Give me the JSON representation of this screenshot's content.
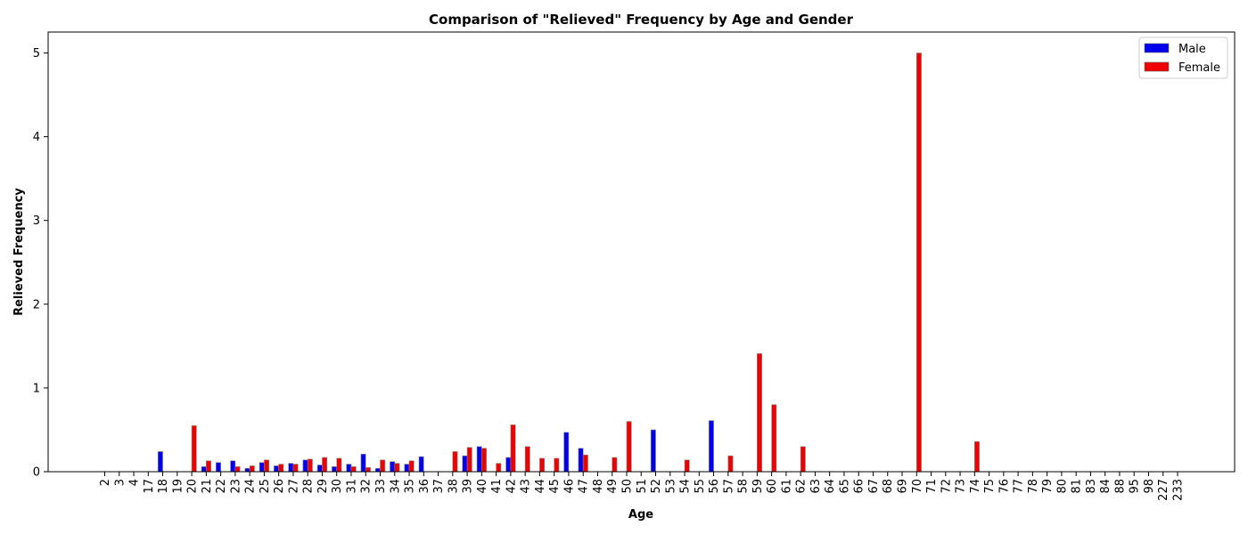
{
  "chart_data": {
    "type": "bar",
    "title": "Comparison of \"Relieved\" Frequency by Age and Gender",
    "xlabel": "Age",
    "ylabel": "Relieved Frequency",
    "ylim": [
      0,
      5.25
    ],
    "yticks": [
      0,
      1,
      2,
      3,
      4,
      5
    ],
    "grid": false,
    "legend_position": "top-right",
    "categories": [
      "2",
      "3",
      "4",
      "17",
      "18",
      "19",
      "20",
      "21",
      "22",
      "23",
      "24",
      "25",
      "26",
      "27",
      "28",
      "29",
      "30",
      "31",
      "32",
      "33",
      "34",
      "35",
      "36",
      "37",
      "38",
      "39",
      "40",
      "41",
      "42",
      "43",
      "44",
      "45",
      "46",
      "47",
      "48",
      "49",
      "50",
      "51",
      "52",
      "53",
      "54",
      "55",
      "56",
      "57",
      "58",
      "59",
      "60",
      "61",
      "62",
      "63",
      "64",
      "65",
      "66",
      "67",
      "68",
      "69",
      "70",
      "71",
      "72",
      "73",
      "74",
      "75",
      "76",
      "77",
      "78",
      "79",
      "80",
      "81",
      "83",
      "84",
      "88",
      "95",
      "98",
      "227",
      "233"
    ],
    "series": [
      {
        "name": "Male",
        "color": "#0000ee",
        "values": [
          0,
          0,
          0,
          0,
          0.24,
          0,
          0,
          0.06,
          0.11,
          0.13,
          0.04,
          0.11,
          0.07,
          0.1,
          0.14,
          0.08,
          0.06,
          0.09,
          0.21,
          0.04,
          0.12,
          0.09,
          0.18,
          0,
          0,
          0.19,
          0.3,
          0,
          0.17,
          0,
          0,
          0,
          0.47,
          0.28,
          0,
          0,
          0,
          0,
          0.5,
          0,
          0,
          0,
          0.61,
          0,
          0,
          0,
          0,
          0,
          0,
          0,
          0,
          0,
          0,
          0,
          0,
          0,
          0,
          0,
          0,
          0,
          0,
          0,
          0,
          0,
          0,
          0,
          0,
          0,
          0,
          0,
          0,
          0,
          0,
          0,
          0
        ]
      },
      {
        "name": "Female",
        "color": "#ee0000",
        "values": [
          0,
          0,
          0,
          0,
          0,
          0,
          0.55,
          0.13,
          0,
          0.06,
          0.07,
          0.14,
          0.09,
          0.09,
          0.15,
          0.17,
          0.16,
          0.06,
          0.05,
          0.14,
          0.1,
          0.13,
          0,
          0,
          0.24,
          0.29,
          0.28,
          0.1,
          0.56,
          0.3,
          0.16,
          0.16,
          0,
          0.2,
          0,
          0.17,
          0.6,
          0,
          0,
          0,
          0.14,
          0,
          0,
          0.19,
          0,
          1.41,
          0.8,
          0,
          0.3,
          0,
          0,
          0,
          0,
          0,
          0,
          0,
          5.0,
          0,
          0,
          0,
          0.36,
          0,
          0,
          0,
          0,
          0,
          0,
          0,
          0,
          0,
          0,
          0,
          0,
          0,
          0
        ]
      }
    ]
  }
}
